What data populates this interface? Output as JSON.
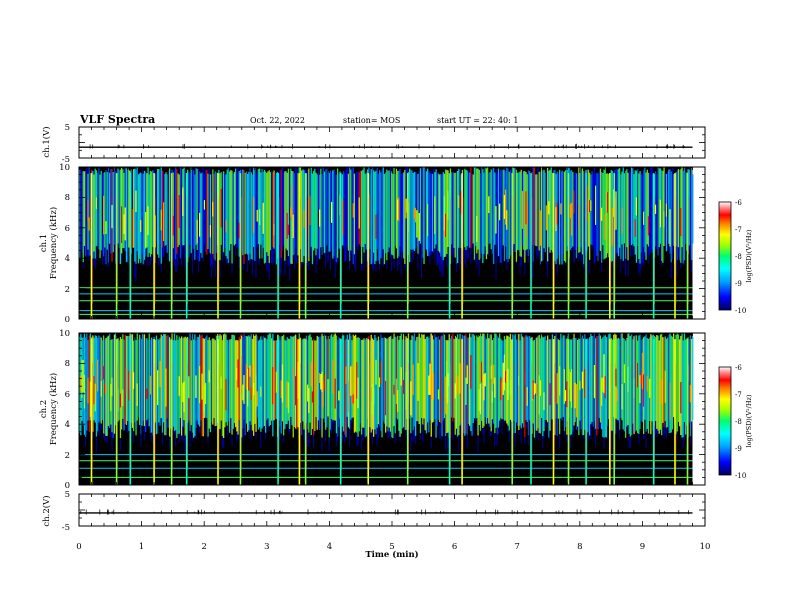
{
  "header": {
    "title": "VLF Spectra",
    "date": "Oct. 22, 2022",
    "station": "station= MOS",
    "start": "start UT = 22: 40: 1"
  },
  "panels": {
    "ch1_waveform": {
      "ylabel": "ch.1(V)",
      "ticks": [
        "5",
        "-5"
      ]
    },
    "ch1_spectrogram": {
      "ylabel_top": "ch.1",
      "ylabel_bottom": "Frequency (kHz)",
      "ticks": [
        "0",
        "2",
        "4",
        "6",
        "8",
        "10"
      ]
    },
    "ch2_spectrogram": {
      "ylabel_top": "ch.2",
      "ylabel_bottom": "Frequency (kHz)",
      "ticks": [
        "0",
        "2",
        "4",
        "6",
        "8",
        "10"
      ]
    },
    "ch2_waveform": {
      "ylabel": "ch.2(V)",
      "ticks": [
        "5",
        "-5"
      ]
    }
  },
  "colorbar": {
    "label": "log(PSD)(V²/Hz)",
    "ticks": [
      "-6",
      "-7",
      "-8",
      "-9",
      "-10"
    ],
    "colors": [
      "#000080",
      "#0000ff",
      "#00a0ff",
      "#00ffff",
      "#00ff80",
      "#80ff00",
      "#ffff00",
      "#ff8000",
      "#ff0000",
      "#ff8080",
      "#ffffff"
    ]
  },
  "chart_data": [
    {
      "type": "line",
      "name": "ch1 waveform",
      "xlabel": "",
      "ylabel": "ch.1(V)",
      "xlim": [
        0,
        10
      ],
      "ylim": [
        -5,
        5
      ],
      "y_level": -1.5
    },
    {
      "type": "heatmap",
      "name": "ch1 spectrogram",
      "xlabel": "",
      "ylabel": "Frequency (kHz)",
      "xlim": [
        0,
        10
      ],
      "ylim": [
        0,
        10
      ],
      "colorbar_range": [
        -10,
        -6
      ],
      "emission_band_khz": [
        4,
        9.5
      ],
      "narrowband_lines_khz": [
        0.3,
        0.55,
        1.2,
        1.65,
        2.05
      ],
      "impulsive_events_min": [
        0.2,
        0.6,
        0.82,
        1.2,
        1.48,
        1.72,
        2.22,
        2.58,
        3.18,
        3.52,
        3.62,
        4.18,
        4.62,
        5.25,
        5.92,
        6.12,
        6.92,
        7.22,
        7.58,
        7.82,
        8.1,
        8.48,
        8.55,
        9.18,
        9.52,
        9.72
      ]
    },
    {
      "type": "heatmap",
      "name": "ch2 spectrogram",
      "xlabel": "",
      "ylabel": "Frequency (kHz)",
      "xlim": [
        0,
        10
      ],
      "ylim": [
        0,
        10
      ],
      "colorbar_range": [
        -10,
        -6
      ],
      "emission_band_khz": [
        3.5,
        9.5
      ],
      "narrowband_lines_khz": [
        0.5,
        1.1,
        1.6,
        2.0
      ],
      "impulsive_events_min": [
        0.2,
        0.6,
        0.82,
        1.2,
        1.48,
        1.72,
        2.22,
        2.58,
        3.18,
        3.52,
        3.62,
        4.18,
        4.62,
        5.25,
        5.92,
        6.12,
        6.92,
        7.22,
        7.58,
        7.82,
        8.1,
        8.48,
        8.55,
        9.18,
        9.52,
        9.72
      ]
    },
    {
      "type": "line",
      "name": "ch2 waveform",
      "xlabel": "Time (min)",
      "ylabel": "ch.2(V)",
      "xlim": [
        0,
        10
      ],
      "ylim": [
        -5,
        5
      ],
      "y_level": -0.9,
      "xticks": [
        "0",
        "1",
        "2",
        "3",
        "4",
        "5",
        "6",
        "7",
        "8",
        "9",
        "10"
      ]
    }
  ]
}
